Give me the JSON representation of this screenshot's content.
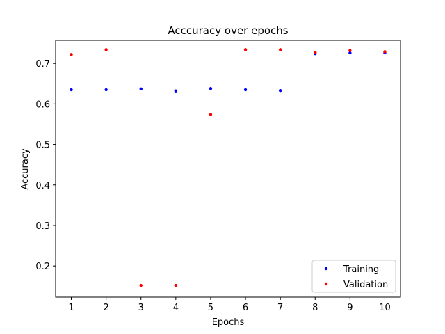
{
  "chart_data": {
    "type": "scatter",
    "title": "Acccuracy over epochs",
    "xlabel": "Epochs",
    "ylabel": "Accuracy",
    "x": [
      1,
      2,
      3,
      4,
      5,
      6,
      7,
      8,
      9,
      10
    ],
    "xticks": [
      "1",
      "2",
      "3",
      "4",
      "5",
      "6",
      "7",
      "8",
      "9",
      "10"
    ],
    "yticks": [
      "0.2",
      "0.3",
      "0.4",
      "0.5",
      "0.6",
      "0.7"
    ],
    "xlim": [
      0.55,
      10.45
    ],
    "ylim": [
      0.123,
      0.757
    ],
    "grid": false,
    "legend_position": "lower-right",
    "series": [
      {
        "name": "Training",
        "color": "#0000ff",
        "values": [
          0.635,
          0.635,
          0.637,
          0.632,
          0.638,
          0.635,
          0.633,
          0.724,
          0.726,
          0.726
        ]
      },
      {
        "name": "Validation",
        "color": "#ff0000",
        "values": [
          0.722,
          0.734,
          0.152,
          0.152,
          0.574,
          0.734,
          0.734,
          0.727,
          0.732,
          0.729
        ]
      }
    ]
  }
}
